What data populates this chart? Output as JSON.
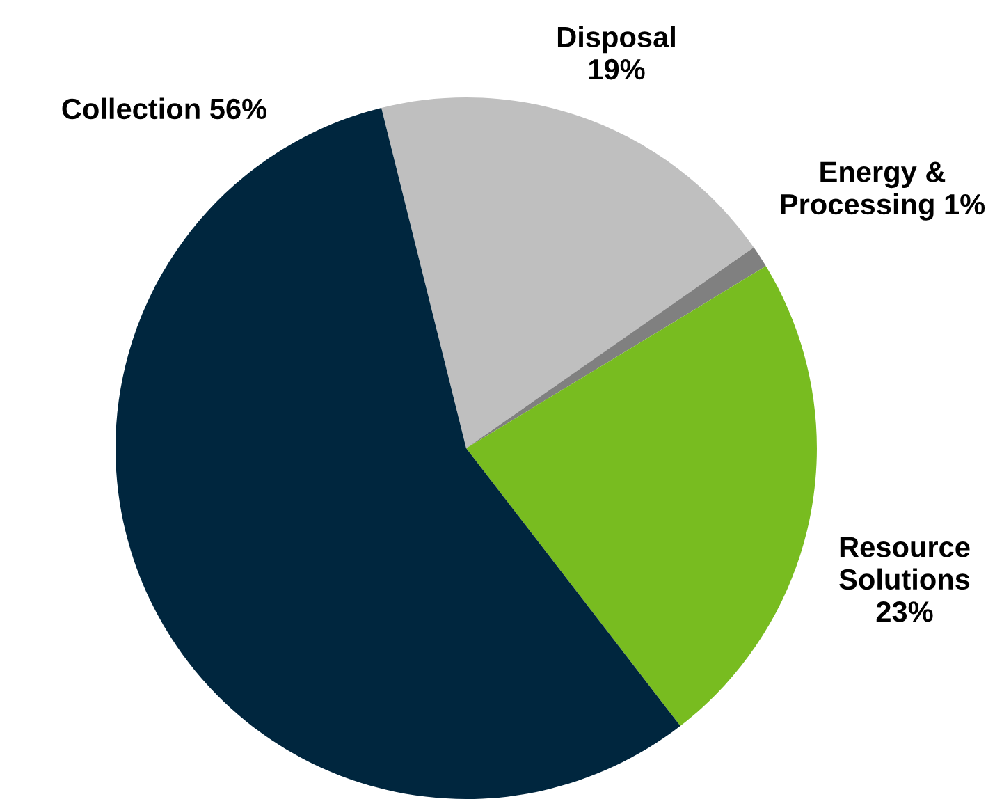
{
  "chart_data": {
    "type": "pie",
    "categories": [
      "Disposal",
      "Energy &\nProcessing",
      "Resource\nSolutions",
      "Collection"
    ],
    "values": [
      19,
      1,
      23,
      56
    ],
    "value_labels": [
      "19%",
      "1%",
      "23%",
      "56%"
    ],
    "colors": [
      "#bfbfbf",
      "#808080",
      "#78bc20",
      "#00263e"
    ],
    "legend": false
  }
}
